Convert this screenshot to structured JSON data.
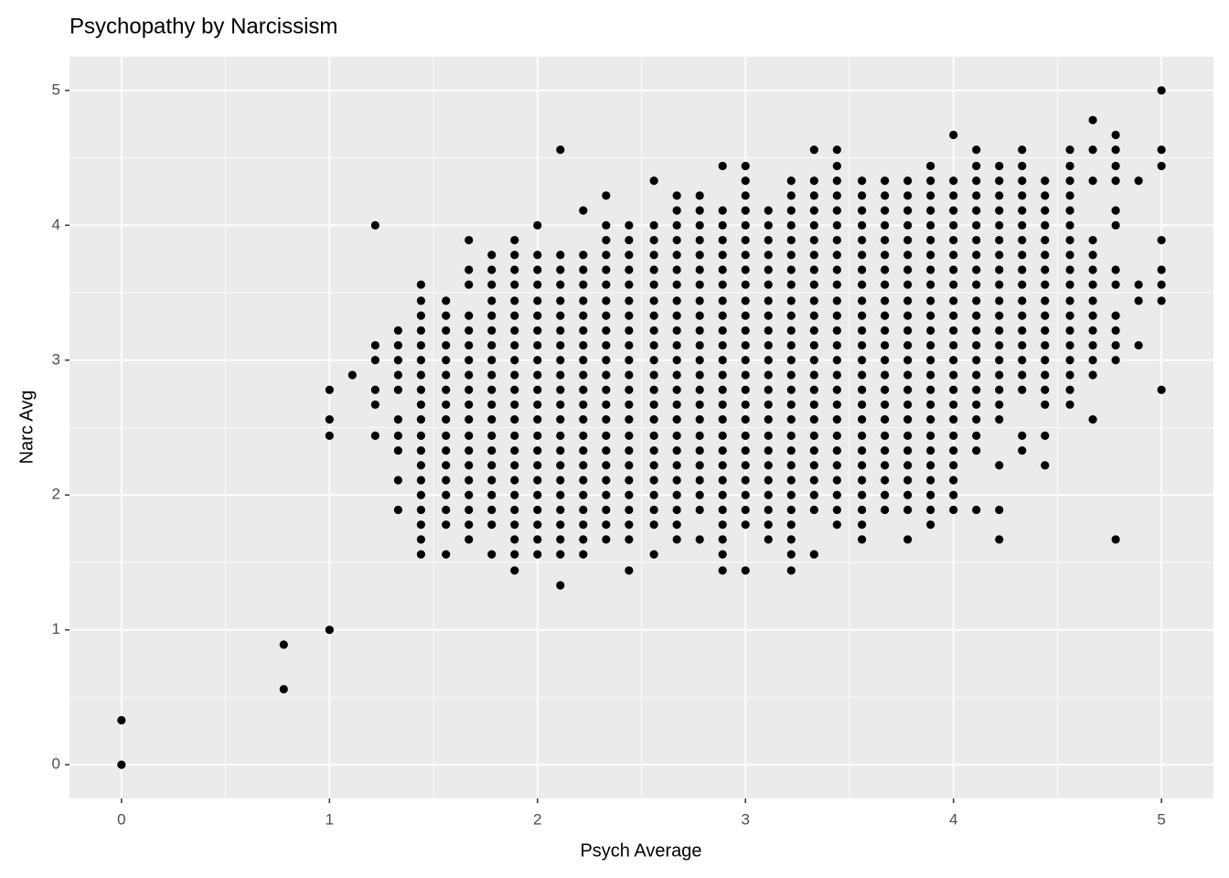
{
  "chart_data": {
    "type": "scatter",
    "title": "Psychopathy by Narcissism",
    "x_label": "Psych Average",
    "y_label": "Narc Avg",
    "color": "#000000",
    "grid": true,
    "xlim": [
      -0.25,
      5.25
    ],
    "ylim": [
      -0.25,
      5.25
    ],
    "xticks": [
      0,
      1,
      2,
      3,
      4,
      5
    ],
    "yticks": [
      0,
      1,
      2,
      3,
      4,
      5
    ],
    "columns": [
      {
        "x": 0,
        "y": [
          0,
          0.33
        ]
      },
      {
        "x": 0.78,
        "y": [
          0.56,
          0.89
        ]
      },
      {
        "x": 1,
        "y": [
          1,
          2.44,
          2.56,
          2.78
        ]
      },
      {
        "x": 1.11,
        "y": [
          2.89
        ]
      },
      {
        "x": 1.22,
        "y": [
          2.44,
          2.67,
          2.78,
          3,
          3.11,
          4
        ]
      },
      {
        "x": 1.33,
        "y": [
          1.89,
          2.11,
          2.33,
          2.44,
          2.56,
          2.78,
          2.89,
          3,
          3.11,
          3.22
        ]
      },
      {
        "x": 1.44,
        "y": [
          1.56,
          1.67,
          1.78,
          1.89,
          2,
          2.11,
          2.22,
          2.33,
          2.44,
          2.56,
          2.67,
          2.78,
          2.89,
          3,
          3.11,
          3.22,
          3.33,
          3.44,
          3.56
        ]
      },
      {
        "x": 1.56,
        "y": [
          1.56,
          1.78,
          1.89,
          2,
          2.11,
          2.22,
          2.33,
          2.44,
          2.56,
          2.67,
          2.78,
          2.89,
          3,
          3.11,
          3.22,
          3.33,
          3.44
        ]
      },
      {
        "x": 1.67,
        "y": [
          1.67,
          1.78,
          1.89,
          2,
          2.11,
          2.22,
          2.33,
          2.44,
          2.56,
          2.67,
          2.78,
          2.89,
          3,
          3.11,
          3.22,
          3.33,
          3.56,
          3.67,
          3.89
        ]
      },
      {
        "x": 1.78,
        "y": [
          1.56,
          1.78,
          1.89,
          2,
          2.11,
          2.22,
          2.33,
          2.44,
          2.56,
          2.67,
          2.78,
          2.89,
          3,
          3.11,
          3.22,
          3.33,
          3.44,
          3.56,
          3.67,
          3.78
        ]
      },
      {
        "x": 1.89,
        "y": [
          1.44,
          1.56,
          1.67,
          1.78,
          1.89,
          2,
          2.11,
          2.22,
          2.33,
          2.44,
          2.56,
          2.67,
          2.78,
          2.89,
          3,
          3.11,
          3.22,
          3.33,
          3.44,
          3.56,
          3.67,
          3.78,
          3.89
        ]
      },
      {
        "x": 2,
        "y": [
          1.56,
          1.67,
          1.78,
          1.89,
          2,
          2.11,
          2.22,
          2.33,
          2.44,
          2.56,
          2.67,
          2.78,
          2.89,
          3,
          3.11,
          3.22,
          3.33,
          3.44,
          3.56,
          3.67,
          3.78,
          4
        ]
      },
      {
        "x": 2.11,
        "y": [
          1.33,
          1.56,
          1.67,
          1.78,
          1.89,
          2,
          2.11,
          2.22,
          2.33,
          2.44,
          2.56,
          2.67,
          2.78,
          2.89,
          3,
          3.11,
          3.22,
          3.33,
          3.44,
          3.56,
          3.67,
          3.78,
          4.56
        ]
      },
      {
        "x": 2.22,
        "y": [
          1.56,
          1.67,
          1.78,
          1.89,
          2,
          2.11,
          2.22,
          2.33,
          2.44,
          2.56,
          2.67,
          2.78,
          2.89,
          3,
          3.11,
          3.22,
          3.33,
          3.44,
          3.56,
          3.67,
          3.78,
          4.11
        ]
      },
      {
        "x": 2.33,
        "y": [
          1.67,
          1.78,
          1.89,
          2,
          2.11,
          2.22,
          2.33,
          2.44,
          2.56,
          2.67,
          2.78,
          2.89,
          3,
          3.11,
          3.22,
          3.33,
          3.44,
          3.56,
          3.67,
          3.78,
          3.89,
          4,
          4.22
        ]
      },
      {
        "x": 2.44,
        "y": [
          1.44,
          1.67,
          1.78,
          1.89,
          2,
          2.11,
          2.22,
          2.33,
          2.44,
          2.56,
          2.67,
          2.78,
          2.89,
          3,
          3.11,
          3.22,
          3.33,
          3.44,
          3.56,
          3.67,
          3.78,
          3.89,
          4
        ]
      },
      {
        "x": 2.56,
        "y": [
          1.56,
          1.78,
          1.89,
          2,
          2.11,
          2.22,
          2.33,
          2.44,
          2.56,
          2.67,
          2.78,
          2.89,
          3,
          3.11,
          3.22,
          3.33,
          3.44,
          3.56,
          3.67,
          3.78,
          3.89,
          4,
          4.33
        ]
      },
      {
        "x": 2.67,
        "y": [
          1.67,
          1.78,
          1.89,
          2,
          2.11,
          2.22,
          2.33,
          2.44,
          2.56,
          2.67,
          2.78,
          2.89,
          3,
          3.11,
          3.22,
          3.33,
          3.44,
          3.56,
          3.67,
          3.78,
          3.89,
          4,
          4.11,
          4.22
        ]
      },
      {
        "x": 2.78,
        "y": [
          1.67,
          1.89,
          2,
          2.11,
          2.22,
          2.33,
          2.44,
          2.56,
          2.67,
          2.78,
          2.89,
          3,
          3.11,
          3.22,
          3.33,
          3.44,
          3.56,
          3.67,
          3.78,
          3.89,
          4,
          4.11,
          4.22
        ]
      },
      {
        "x": 2.89,
        "y": [
          1.44,
          1.56,
          1.67,
          1.78,
          1.89,
          2,
          2.11,
          2.22,
          2.33,
          2.44,
          2.56,
          2.67,
          2.78,
          2.89,
          3,
          3.11,
          3.22,
          3.33,
          3.44,
          3.56,
          3.67,
          3.78,
          3.89,
          4,
          4.11,
          4.44
        ]
      },
      {
        "x": 3,
        "y": [
          1.44,
          1.78,
          1.89,
          2,
          2.11,
          2.22,
          2.33,
          2.44,
          2.56,
          2.67,
          2.78,
          2.89,
          3,
          3.11,
          3.22,
          3.33,
          3.44,
          3.56,
          3.67,
          3.78,
          3.89,
          4,
          4.11,
          4.22,
          4.33,
          4.44
        ]
      },
      {
        "x": 3.11,
        "y": [
          1.67,
          1.78,
          1.89,
          2,
          2.11,
          2.22,
          2.33,
          2.44,
          2.56,
          2.67,
          2.78,
          2.89,
          3,
          3.11,
          3.22,
          3.33,
          3.44,
          3.56,
          3.67,
          3.78,
          3.89,
          4,
          4.11
        ]
      },
      {
        "x": 3.22,
        "y": [
          1.44,
          1.56,
          1.67,
          1.78,
          1.89,
          2,
          2.11,
          2.22,
          2.33,
          2.44,
          2.56,
          2.67,
          2.78,
          2.89,
          3,
          3.11,
          3.22,
          3.33,
          3.44,
          3.56,
          3.67,
          3.78,
          3.89,
          4,
          4.11,
          4.22,
          4.33
        ]
      },
      {
        "x": 3.33,
        "y": [
          1.56,
          1.89,
          2,
          2.11,
          2.22,
          2.33,
          2.44,
          2.56,
          2.67,
          2.78,
          2.89,
          3,
          3.11,
          3.22,
          3.33,
          3.44,
          3.56,
          3.67,
          3.78,
          3.89,
          4,
          4.11,
          4.22,
          4.33,
          4.56
        ]
      },
      {
        "x": 3.44,
        "y": [
          1.78,
          1.89,
          2,
          2.11,
          2.22,
          2.33,
          2.44,
          2.56,
          2.67,
          2.78,
          2.89,
          3,
          3.11,
          3.22,
          3.33,
          3.44,
          3.56,
          3.67,
          3.78,
          3.89,
          4,
          4.11,
          4.22,
          4.33,
          4.44,
          4.56
        ]
      },
      {
        "x": 3.56,
        "y": [
          1.67,
          1.78,
          1.89,
          2,
          2.11,
          2.22,
          2.33,
          2.44,
          2.56,
          2.67,
          2.78,
          2.89,
          3,
          3.11,
          3.22,
          3.33,
          3.44,
          3.56,
          3.67,
          3.78,
          3.89,
          4,
          4.11,
          4.22,
          4.33
        ]
      },
      {
        "x": 3.67,
        "y": [
          1.89,
          2,
          2.11,
          2.22,
          2.33,
          2.44,
          2.56,
          2.67,
          2.78,
          2.89,
          3,
          3.11,
          3.22,
          3.33,
          3.44,
          3.56,
          3.67,
          3.78,
          3.89,
          4,
          4.11,
          4.22,
          4.33
        ]
      },
      {
        "x": 3.78,
        "y": [
          1.67,
          1.89,
          2,
          2.11,
          2.22,
          2.33,
          2.44,
          2.56,
          2.67,
          2.78,
          2.89,
          3,
          3.11,
          3.22,
          3.33,
          3.44,
          3.56,
          3.67,
          3.78,
          3.89,
          4,
          4.11,
          4.22,
          4.33
        ]
      },
      {
        "x": 3.89,
        "y": [
          1.78,
          1.89,
          2,
          2.11,
          2.22,
          2.33,
          2.44,
          2.56,
          2.67,
          2.78,
          2.89,
          3,
          3.11,
          3.22,
          3.33,
          3.44,
          3.56,
          3.67,
          3.78,
          3.89,
          4,
          4.11,
          4.22,
          4.33,
          4.44
        ]
      },
      {
        "x": 4,
        "y": [
          1.89,
          2,
          2.11,
          2.22,
          2.33,
          2.44,
          2.56,
          2.67,
          2.78,
          2.89,
          3,
          3.11,
          3.22,
          3.33,
          3.44,
          3.56,
          3.67,
          3.78,
          3.89,
          4,
          4.11,
          4.22,
          4.33,
          4.67
        ]
      },
      {
        "x": 4.11,
        "y": [
          1.89,
          2.33,
          2.44,
          2.56,
          2.67,
          2.78,
          2.89,
          3,
          3.11,
          3.22,
          3.33,
          3.44,
          3.56,
          3.67,
          3.78,
          3.89,
          4,
          4.11,
          4.22,
          4.33,
          4.44,
          4.56
        ]
      },
      {
        "x": 4.22,
        "y": [
          1.67,
          1.89,
          2.22,
          2.56,
          2.67,
          2.78,
          2.89,
          3,
          3.11,
          3.22,
          3.33,
          3.44,
          3.56,
          3.67,
          3.78,
          3.89,
          4,
          4.11,
          4.22,
          4.33,
          4.44
        ]
      },
      {
        "x": 4.33,
        "y": [
          2.33,
          2.44,
          2.78,
          2.89,
          3,
          3.11,
          3.22,
          3.33,
          3.44,
          3.56,
          3.67,
          3.78,
          3.89,
          4,
          4.11,
          4.22,
          4.33,
          4.44,
          4.56
        ]
      },
      {
        "x": 4.44,
        "y": [
          2.22,
          2.44,
          2.67,
          2.78,
          2.89,
          3,
          3.11,
          3.22,
          3.33,
          3.44,
          3.56,
          3.67,
          3.78,
          3.89,
          4,
          4.11,
          4.22,
          4.33
        ]
      },
      {
        "x": 4.56,
        "y": [
          2.67,
          2.78,
          2.89,
          3,
          3.11,
          3.22,
          3.33,
          3.44,
          3.56,
          3.67,
          3.78,
          3.89,
          4,
          4.11,
          4.22,
          4.33,
          4.44,
          4.56
        ]
      },
      {
        "x": 4.67,
        "y": [
          2.56,
          2.89,
          3,
          3.11,
          3.22,
          3.33,
          3.44,
          3.56,
          3.67,
          3.78,
          3.89,
          4.33,
          4.56,
          4.78
        ]
      },
      {
        "x": 4.78,
        "y": [
          1.67,
          3,
          3.11,
          3.22,
          3.33,
          3.56,
          3.67,
          4,
          4.11,
          4.33,
          4.44,
          4.56,
          4.67
        ]
      },
      {
        "x": 4.89,
        "y": [
          3.11,
          3.44,
          3.56,
          4.33
        ]
      },
      {
        "x": 5,
        "y": [
          2.78,
          3.44,
          3.56,
          3.67,
          3.89,
          4.44,
          4.56,
          5
        ]
      }
    ]
  }
}
